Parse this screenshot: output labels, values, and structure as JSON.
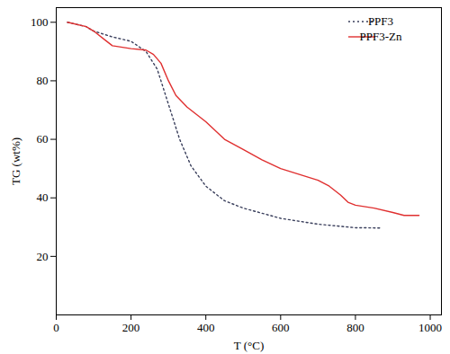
{
  "chart_data": {
    "type": "line",
    "x_label": "T (°C)",
    "y_label": "TG (wt%)",
    "xlim": [
      0,
      1030
    ],
    "xticks": [
      0,
      200,
      400,
      600,
      800,
      1000
    ],
    "ylim": [
      0,
      105
    ],
    "yticks": [
      20,
      40,
      60,
      80,
      100
    ],
    "legend": "upper right",
    "series": [
      {
        "name": "PPF3",
        "color": "#3a3f5c",
        "line_style": "dotted",
        "x": [
          30,
          80,
          100,
          150,
          200,
          240,
          270,
          300,
          330,
          360,
          400,
          450,
          500,
          600,
          700,
          800,
          870
        ],
        "values": [
          100,
          98.5,
          97,
          95,
          93.5,
          90,
          84,
          72,
          60,
          51,
          44,
          39,
          36.5,
          33,
          31,
          29.8,
          29.7
        ]
      },
      {
        "name": "PPF3-Zn",
        "color": "#e03030",
        "line_style": "solid",
        "x": [
          30,
          80,
          100,
          130,
          150,
          200,
          240,
          260,
          280,
          300,
          320,
          350,
          400,
          450,
          500,
          550,
          600,
          650,
          700,
          730,
          760,
          780,
          800,
          850,
          900,
          930,
          970
        ],
        "values": [
          100,
          98.5,
          97,
          94,
          92,
          91,
          90.5,
          89,
          86,
          80,
          75,
          71,
          66,
          60,
          56.5,
          53,
          50,
          48,
          46,
          44,
          41,
          38.5,
          37.5,
          36.5,
          35,
          34,
          34
        ]
      }
    ]
  }
}
